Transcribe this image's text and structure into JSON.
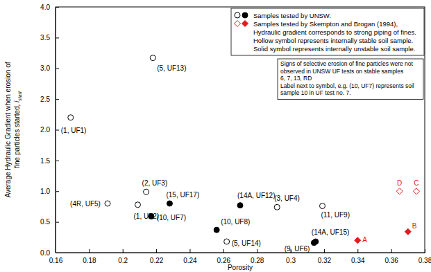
{
  "chart_data": {
    "type": "scatter",
    "xlabel": "Porosity",
    "ylabel": [
      "Average Hydraulic Gradient when erosion of",
      "fine particles started,"
    ],
    "ylabel_symbol": "i",
    "ylabel_subscript": "start",
    "xlim": [
      0.16,
      0.38
    ],
    "xticks": [
      0.16,
      0.18,
      0.2,
      0.22,
      0.24,
      0.26,
      0.28,
      0.3,
      0.32,
      0.34,
      0.36,
      0.38
    ],
    "ylim": [
      0,
      4
    ],
    "yticks": [
      {
        "value": 0,
        "label": "0.0"
      },
      0.5,
      {
        "value": 1,
        "label": "1.0"
      },
      1.5,
      {
        "value": 2,
        "label": "2.0"
      },
      2.5,
      {
        "value": 3,
        "label": "3.0"
      },
      3.5,
      {
        "value": 4,
        "label": "4.0"
      }
    ],
    "grid": false,
    "legend": "top-right",
    "legend_notes": [
      "Hydraulic gradient corresponds to strong piping of fines.",
      "Hollow symbol represents internally stable soil sample.",
      "Solid symbol represents internally unstable soil sample."
    ],
    "annotation": [
      "Signs of selective erosion of fine particles were not",
      "observed in UNSW UF tests on stable samples",
      "6, 7, 13, RD",
      "Label next to symbol, e.g. (10, UF7) represents soil",
      "sample 10 in UF test no. 7."
    ],
    "series": [
      {
        "name": "Samples tested by UNSW.",
        "color": "#000000",
        "marker": "open-circle",
        "x": [
          0.169,
          0.218,
          0.214,
          0.191,
          0.209,
          0.262,
          0.292,
          0.319
        ],
        "values": [
          2.2,
          3.17,
          0.99,
          0.8,
          0.78,
          0.18,
          0.74,
          0.76
        ],
        "labels": [
          "(1, UF1)",
          "(5, UF13)",
          "(2, UF3)",
          "(4R, UF5)",
          "(1, UF2)",
          "(5, UF14)",
          "(3, UF4)",
          "(11, UF9)"
        ]
      },
      {
        "name": "Samples tested by UNSW.",
        "color": "#000000",
        "marker": "circle",
        "x": [
          0.217,
          0.228,
          0.256,
          0.27,
          0.315,
          0.314
        ],
        "values": [
          0.59,
          0.8,
          0.37,
          0.77,
          0.18,
          0.16
        ],
        "labels": [
          "(10, UF7)",
          "(15, UF17)",
          "(10, UF8)",
          "(14A, UF12)",
          "(14A, UF15)",
          "(9, UF6)"
        ]
      },
      {
        "name": "Samples tested by Skempton and Brogan (1994),",
        "color": "#e31a1c",
        "marker": "open-diamond",
        "x": [
          0.365,
          0.375
        ],
        "values": [
          1.0,
          1.0
        ],
        "labels": [
          "D",
          "C"
        ]
      },
      {
        "name": "Samples tested by Skempton and Brogan (1994),",
        "color": "#e31a1c",
        "marker": "diamond",
        "x": [
          0.34,
          0.37
        ],
        "values": [
          0.2,
          0.34
        ],
        "labels": [
          "A",
          "B"
        ]
      }
    ]
  }
}
